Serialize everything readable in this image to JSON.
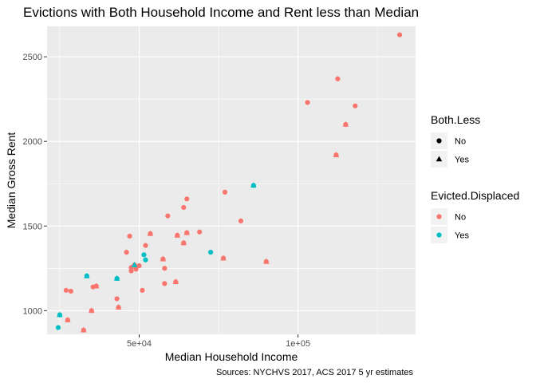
{
  "chart_data": {
    "type": "scatter",
    "title": "Evictions with Both Household Income and Rent less than Median",
    "xlabel": "Median Household Income",
    "ylabel": "Median Gross Rent",
    "caption": "Sources: NYCHVS 2017, ACS 2017 5 yr estimates",
    "xlim": [
      21000,
      137000
    ],
    "ylim": [
      860,
      2680
    ],
    "x_ticks": [
      {
        "value": 50000,
        "label": "5e+04"
      },
      {
        "value": 100000,
        "label": "1e+05"
      }
    ],
    "y_ticks": [
      {
        "value": 1000,
        "label": "1000"
      },
      {
        "value": 1500,
        "label": "1500"
      },
      {
        "value": 2000,
        "label": "2000"
      },
      {
        "value": 2500,
        "label": "2500"
      }
    ],
    "background": "#ebebeb",
    "grid": true,
    "legends": [
      {
        "title": "Both.Less",
        "type": "shape",
        "items": [
          {
            "label": "No",
            "shape": "circle"
          },
          {
            "label": "Yes",
            "shape": "triangle"
          }
        ]
      },
      {
        "title": "Evicted.Displaced",
        "type": "color",
        "items": [
          {
            "label": "No",
            "color": "#f8766d"
          },
          {
            "label": "Yes",
            "color": "#00bfc4"
          }
        ]
      }
    ],
    "colors": {
      "No": "#f8766d",
      "Yes": "#00bfc4"
    },
    "points": [
      {
        "x": 132000,
        "y": 2630,
        "both_less": "No",
        "evicted": "No"
      },
      {
        "x": 112500,
        "y": 2370,
        "both_less": "No",
        "evicted": "No"
      },
      {
        "x": 103000,
        "y": 2230,
        "both_less": "No",
        "evicted": "No"
      },
      {
        "x": 118000,
        "y": 2210,
        "both_less": "No",
        "evicted": "No"
      },
      {
        "x": 115000,
        "y": 2100,
        "both_less": "No",
        "evicted": "No"
      },
      {
        "x": 112000,
        "y": 1920,
        "both_less": "No",
        "evicted": "No"
      },
      {
        "x": 86000,
        "y": 1740,
        "both_less": "No",
        "evicted": "Yes"
      },
      {
        "x": 77000,
        "y": 1700,
        "both_less": "No",
        "evicted": "No"
      },
      {
        "x": 65000,
        "y": 1660,
        "both_less": "No",
        "evicted": "No"
      },
      {
        "x": 64000,
        "y": 1610,
        "both_less": "No",
        "evicted": "No"
      },
      {
        "x": 59000,
        "y": 1560,
        "both_less": "No",
        "evicted": "No"
      },
      {
        "x": 82000,
        "y": 1530,
        "both_less": "No",
        "evicted": "No"
      },
      {
        "x": 69000,
        "y": 1465,
        "both_less": "No",
        "evicted": "No"
      },
      {
        "x": 65000,
        "y": 1460,
        "both_less": "No",
        "evicted": "No"
      },
      {
        "x": 53500,
        "y": 1455,
        "both_less": "No",
        "evicted": "No"
      },
      {
        "x": 47000,
        "y": 1440,
        "both_less": "No",
        "evicted": "No"
      },
      {
        "x": 62000,
        "y": 1445,
        "both_less": "No",
        "evicted": "No"
      },
      {
        "x": 64000,
        "y": 1400,
        "both_less": "No",
        "evicted": "No"
      },
      {
        "x": 52000,
        "y": 1385,
        "both_less": "No",
        "evicted": "No"
      },
      {
        "x": 46000,
        "y": 1345,
        "both_less": "No",
        "evicted": "No"
      },
      {
        "x": 72500,
        "y": 1345,
        "both_less": "No",
        "evicted": "Yes"
      },
      {
        "x": 51500,
        "y": 1330,
        "both_less": "No",
        "evicted": "Yes"
      },
      {
        "x": 76500,
        "y": 1310,
        "both_less": "No",
        "evicted": "No"
      },
      {
        "x": 57500,
        "y": 1305,
        "both_less": "No",
        "evicted": "No"
      },
      {
        "x": 52000,
        "y": 1300,
        "both_less": "No",
        "evicted": "Yes"
      },
      {
        "x": 90000,
        "y": 1290,
        "both_less": "No",
        "evicted": "No"
      },
      {
        "x": 48500,
        "y": 1270,
        "both_less": "No",
        "evicted": "No"
      },
      {
        "x": 50000,
        "y": 1265,
        "both_less": "No",
        "evicted": "No"
      },
      {
        "x": 47500,
        "y": 1255,
        "both_less": "No",
        "evicted": "No"
      },
      {
        "x": 58000,
        "y": 1250,
        "both_less": "No",
        "evicted": "No"
      },
      {
        "x": 49000,
        "y": 1245,
        "both_less": "No",
        "evicted": "No"
      },
      {
        "x": 47500,
        "y": 1235,
        "both_less": "No",
        "evicted": "No"
      },
      {
        "x": 33500,
        "y": 1205,
        "both_less": "No",
        "evicted": "Yes"
      },
      {
        "x": 43000,
        "y": 1190,
        "both_less": "No",
        "evicted": "Yes"
      },
      {
        "x": 61500,
        "y": 1170,
        "both_less": "No",
        "evicted": "No"
      },
      {
        "x": 58000,
        "y": 1160,
        "both_less": "No",
        "evicted": "No"
      },
      {
        "x": 36500,
        "y": 1145,
        "both_less": "No",
        "evicted": "No"
      },
      {
        "x": 35500,
        "y": 1140,
        "both_less": "No",
        "evicted": "No"
      },
      {
        "x": 51000,
        "y": 1120,
        "both_less": "No",
        "evicted": "No"
      },
      {
        "x": 27000,
        "y": 1120,
        "both_less": "No",
        "evicted": "No"
      },
      {
        "x": 28500,
        "y": 1115,
        "both_less": "No",
        "evicted": "No"
      },
      {
        "x": 43000,
        "y": 1070,
        "both_less": "No",
        "evicted": "No"
      },
      {
        "x": 43500,
        "y": 1020,
        "both_less": "No",
        "evicted": "No"
      },
      {
        "x": 35000,
        "y": 1000,
        "both_less": "No",
        "evicted": "No"
      },
      {
        "x": 25000,
        "y": 975,
        "both_less": "No",
        "evicted": "Yes"
      },
      {
        "x": 27500,
        "y": 945,
        "both_less": "No",
        "evicted": "No"
      },
      {
        "x": 24500,
        "y": 900,
        "both_less": "No",
        "evicted": "Yes"
      },
      {
        "x": 32500,
        "y": 885,
        "both_less": "No",
        "evicted": "No"
      },
      {
        "x": 115000,
        "y": 2100,
        "both_less": "Yes",
        "evicted": "No"
      },
      {
        "x": 112000,
        "y": 1920,
        "both_less": "Yes",
        "evicted": "No"
      },
      {
        "x": 86000,
        "y": 1740,
        "both_less": "Yes",
        "evicted": "Yes"
      },
      {
        "x": 65000,
        "y": 1460,
        "both_less": "Yes",
        "evicted": "No"
      },
      {
        "x": 53500,
        "y": 1455,
        "both_less": "Yes",
        "evicted": "No"
      },
      {
        "x": 62000,
        "y": 1445,
        "both_less": "Yes",
        "evicted": "No"
      },
      {
        "x": 64000,
        "y": 1400,
        "both_less": "Yes",
        "evicted": "No"
      },
      {
        "x": 76500,
        "y": 1310,
        "both_less": "Yes",
        "evicted": "No"
      },
      {
        "x": 57500,
        "y": 1305,
        "both_less": "Yes",
        "evicted": "No"
      },
      {
        "x": 90000,
        "y": 1290,
        "both_less": "Yes",
        "evicted": "No"
      },
      {
        "x": 48500,
        "y": 1270,
        "both_less": "Yes",
        "evicted": "Yes"
      },
      {
        "x": 33500,
        "y": 1205,
        "both_less": "Yes",
        "evicted": "Yes"
      },
      {
        "x": 43000,
        "y": 1190,
        "both_less": "Yes",
        "evicted": "Yes"
      },
      {
        "x": 61500,
        "y": 1170,
        "both_less": "Yes",
        "evicted": "No"
      },
      {
        "x": 36500,
        "y": 1145,
        "both_less": "Yes",
        "evicted": "No"
      },
      {
        "x": 43500,
        "y": 1020,
        "both_less": "Yes",
        "evicted": "No"
      },
      {
        "x": 35000,
        "y": 1000,
        "both_less": "Yes",
        "evicted": "No"
      },
      {
        "x": 25000,
        "y": 975,
        "both_less": "Yes",
        "evicted": "Yes"
      },
      {
        "x": 27500,
        "y": 945,
        "both_less": "Yes",
        "evicted": "No"
      },
      {
        "x": 32500,
        "y": 885,
        "both_less": "Yes",
        "evicted": "No"
      }
    ]
  }
}
